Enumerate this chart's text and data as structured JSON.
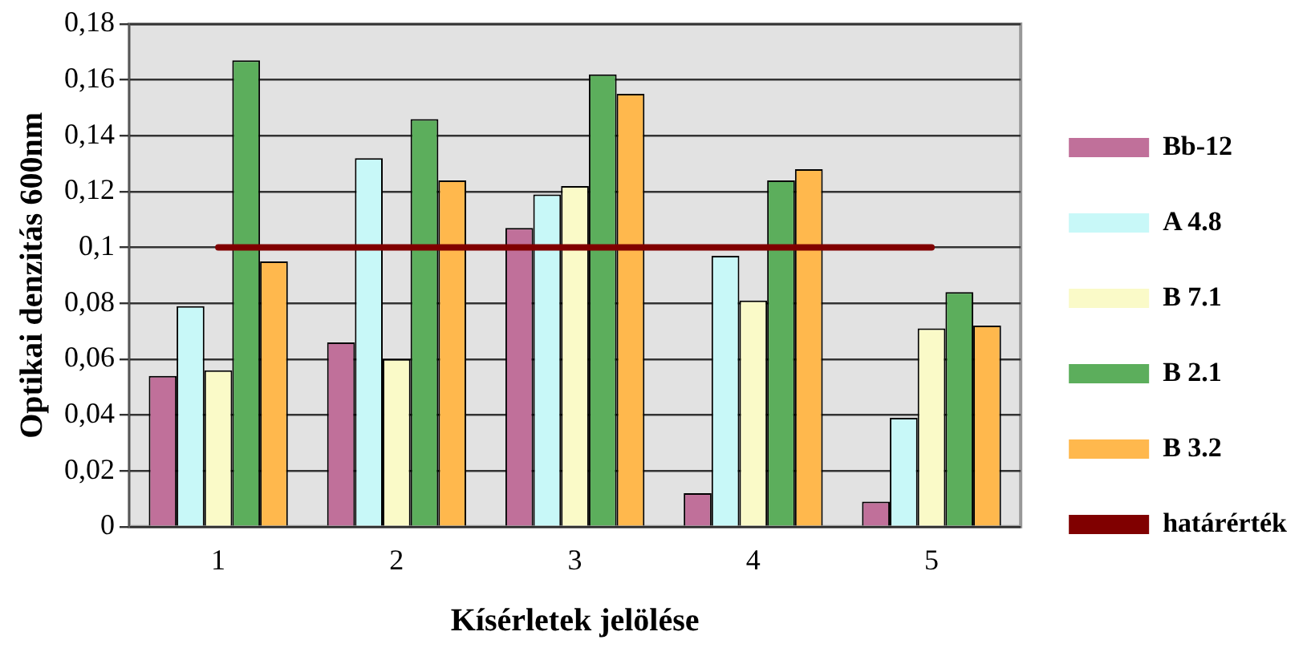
{
  "chart_data": {
    "type": "bar",
    "xlabel": "Kísérletek jelölése",
    "ylabel": "Optikai denzitás 600nm",
    "categories": [
      "1",
      "2",
      "3",
      "4",
      "5"
    ],
    "series": [
      {
        "name": "Bb-12",
        "color": "#c0709a",
        "values": [
          0.054,
          0.066,
          0.107,
          0.012,
          0.009
        ]
      },
      {
        "name": "A 4.8",
        "color": "#c8f8f8",
        "values": [
          0.079,
          0.132,
          0.119,
          0.097,
          0.039
        ]
      },
      {
        "name": "B 7.1",
        "color": "#fafac8",
        "values": [
          0.056,
          0.06,
          0.122,
          0.081,
          0.071
        ]
      },
      {
        "name": "B 2.1",
        "color": "#5cae5c",
        "values": [
          0.167,
          0.146,
          0.162,
          0.124,
          0.084
        ]
      },
      {
        "name": "B 3.2",
        "color": "#ffb84d",
        "values": [
          0.095,
          0.124,
          0.155,
          0.128,
          0.072
        ]
      },
      {
        "name": "határérték",
        "type": "line",
        "color": "#800000",
        "values": [
          0.1,
          0.1,
          0.1,
          0.1,
          0.1
        ]
      }
    ],
    "ylim": [
      0,
      0.18
    ],
    "yticks": [
      0,
      {
        "value": 0.02,
        "label": "0,02"
      },
      {
        "value": 0.04,
        "label": "0,04"
      },
      {
        "value": 0.06,
        "label": "0,06"
      },
      {
        "value": 0.08,
        "label": "0,08"
      },
      {
        "value": 0.1,
        "label": "0,1"
      },
      {
        "value": 0.12,
        "label": "0,12"
      },
      {
        "value": 0.14,
        "label": "0,14"
      },
      {
        "value": 0.16,
        "label": "0,16"
      },
      {
        "value": 0.18,
        "label": "0,18"
      }
    ],
    "grid": "y",
    "legend": "right"
  }
}
